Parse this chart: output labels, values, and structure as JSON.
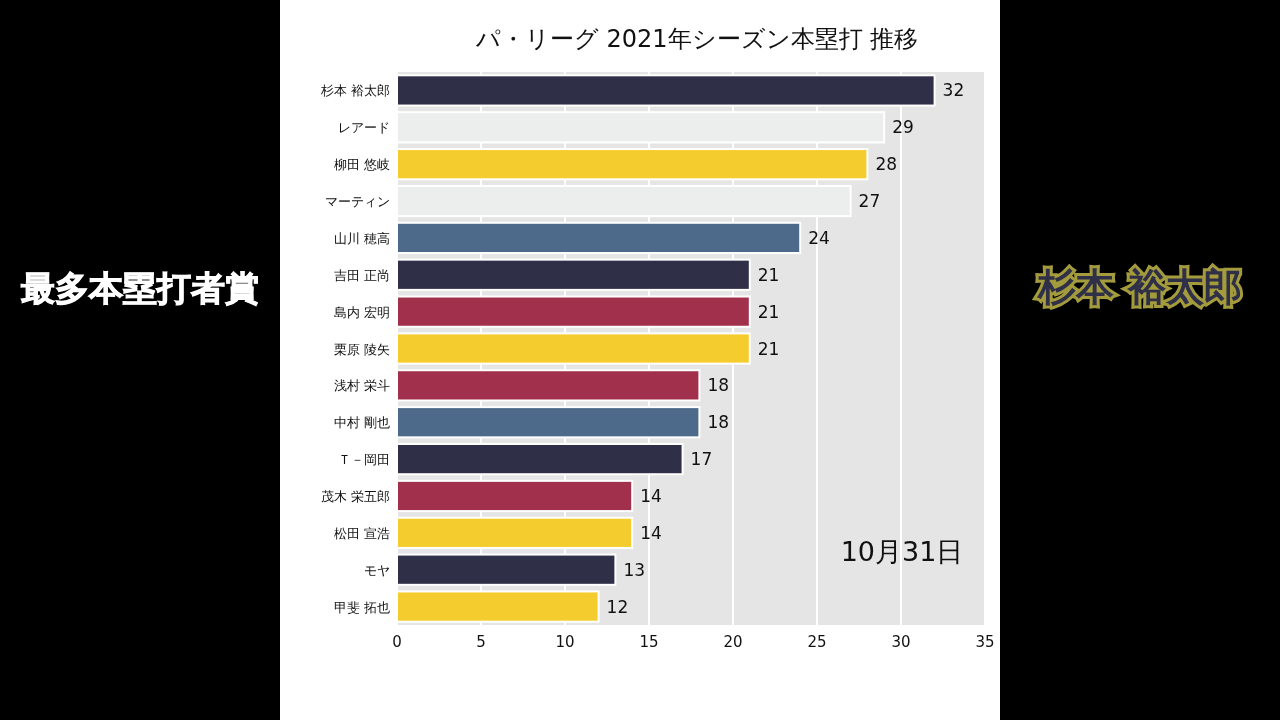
{
  "chart_data": {
    "type": "bar",
    "orientation": "horizontal",
    "title": "パ・リーグ 2021年シーズン本塁打 推移",
    "categories": [
      "杉本 裕太郎",
      "レアード",
      "柳田 悠岐",
      "マーティン",
      "山川 穂高",
      "吉田 正尚",
      "島内 宏明",
      "栗原 陵矢",
      "浅村 栄斗",
      "中村 剛也",
      "Ｔ－岡田",
      "茂木 栄五郎",
      "松田 宣浩",
      "モヤ",
      "甲斐 拓也"
    ],
    "values": [
      32,
      29,
      28,
      27,
      24,
      21,
      21,
      21,
      18,
      18,
      17,
      14,
      14,
      13,
      12
    ],
    "colors": [
      "#2f3047",
      "#eceeed",
      "#f5cc2e",
      "#eceeed",
      "#4d6a8a",
      "#2f3047",
      "#a0304b",
      "#f5cc2e",
      "#a0304b",
      "#4d6a8a",
      "#2f3047",
      "#a0304b",
      "#f5cc2e",
      "#2f3047",
      "#f5cc2e"
    ],
    "xlim": [
      0,
      35
    ],
    "xticks": [
      0,
      5,
      10,
      15,
      20,
      25,
      30,
      35
    ],
    "grid": "x",
    "data_labels": true,
    "annotations": [
      "10月31日",
      "最多本塁打者賞",
      "杉本 裕太郎"
    ]
  }
}
